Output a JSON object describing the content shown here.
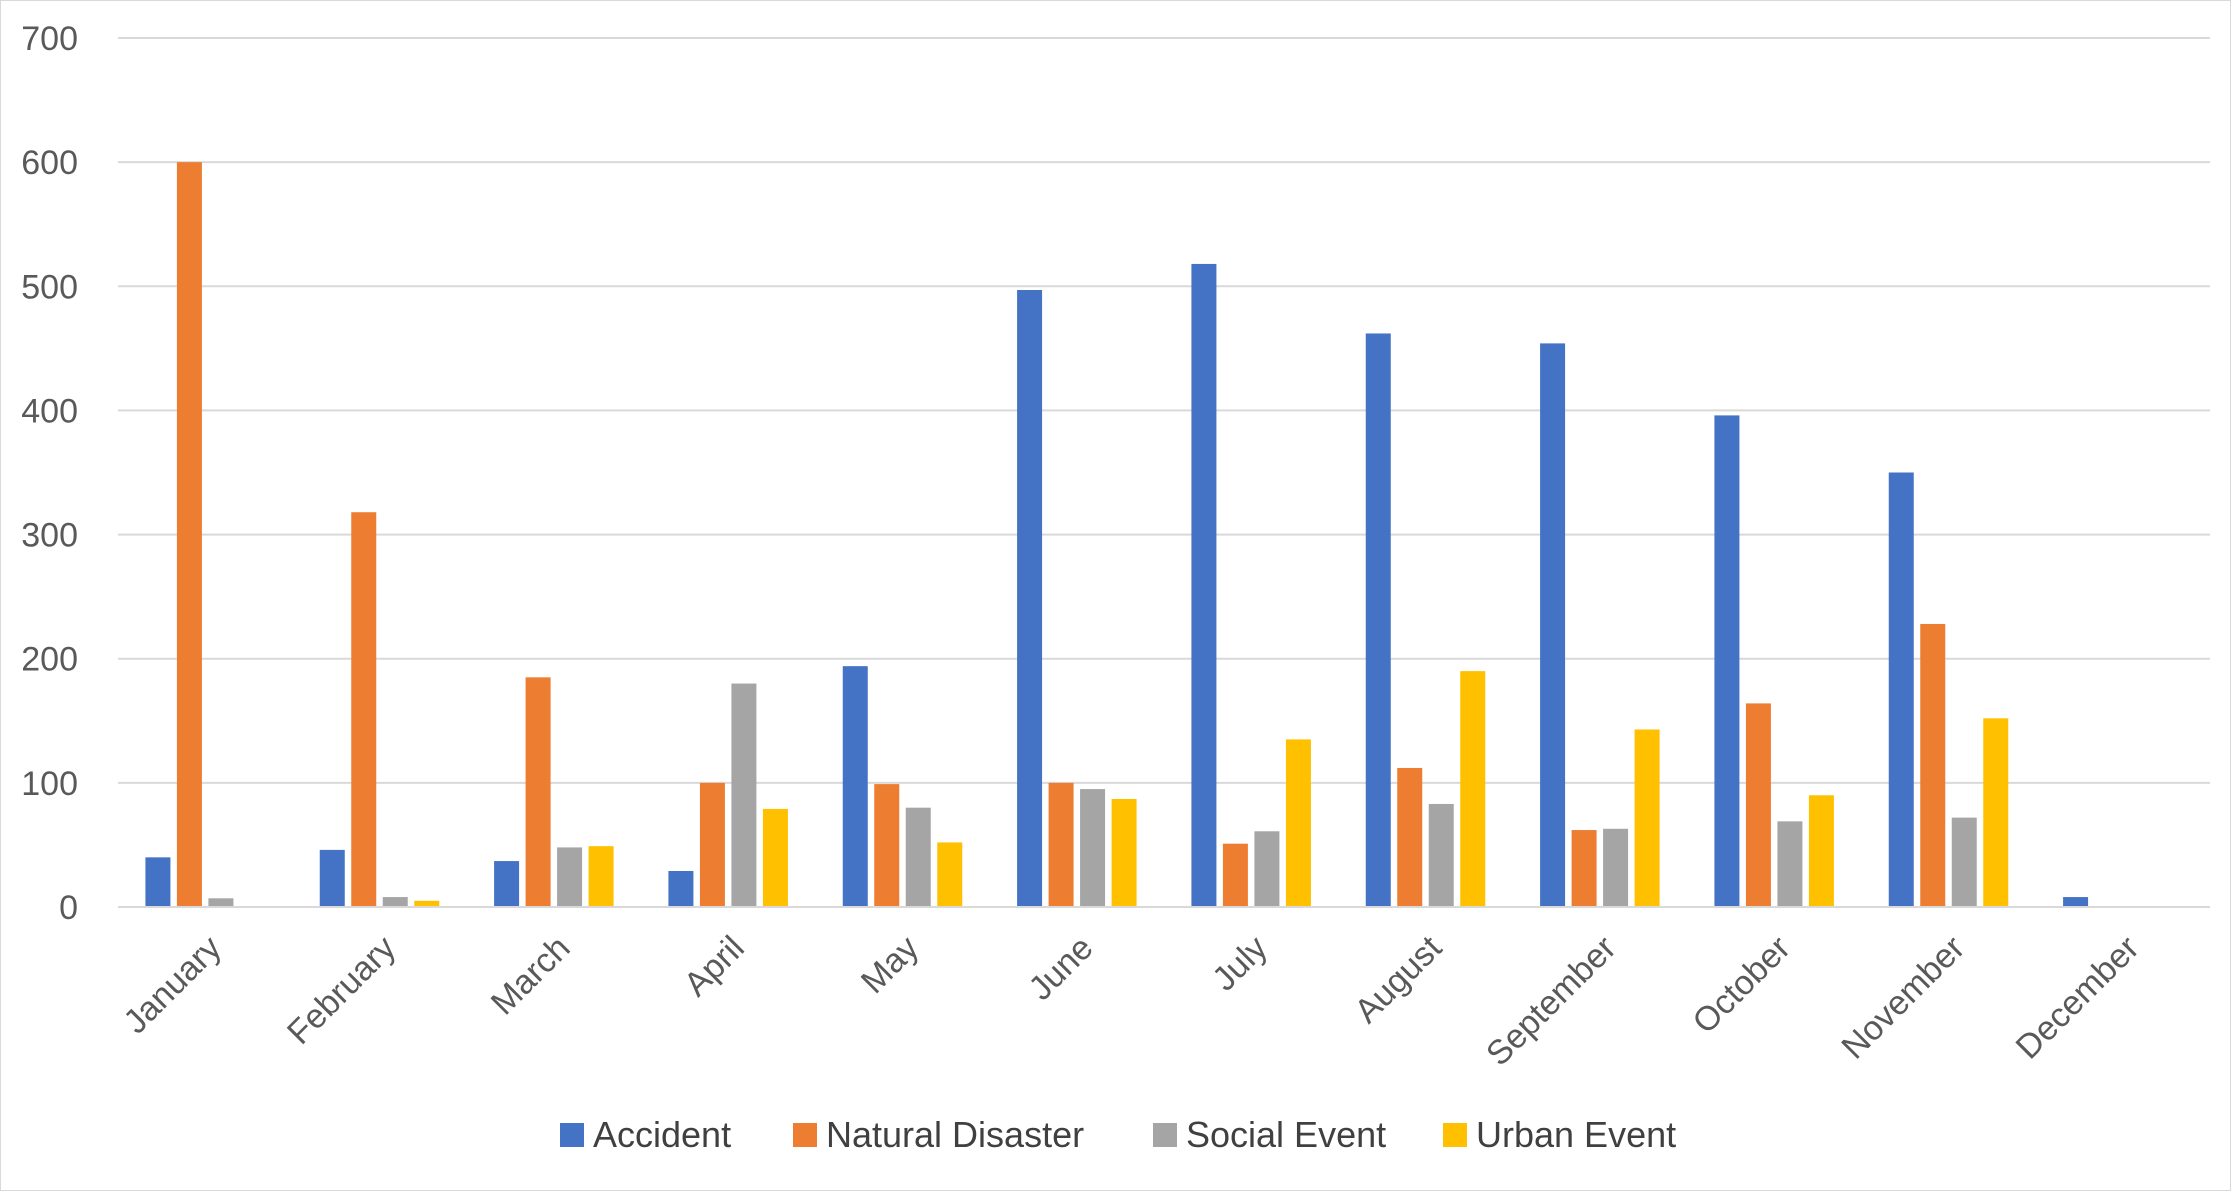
{
  "chart_data": {
    "type": "bar",
    "title": "",
    "xlabel": "",
    "ylabel": "",
    "ylim": [
      0,
      700
    ],
    "yticks": [
      0,
      100,
      200,
      300,
      400,
      500,
      600,
      700
    ],
    "grid": true,
    "legend_position": "bottom",
    "categories": [
      "January",
      "February",
      "March",
      "April",
      "May",
      "June",
      "July",
      "August",
      "September",
      "October",
      "November",
      "December"
    ],
    "series": [
      {
        "name": "Accident",
        "color": "#4472c4",
        "values": [
          40,
          46,
          37,
          29,
          194,
          497,
          518,
          462,
          454,
          396,
          350,
          8
        ]
      },
      {
        "name": "Natural Disaster",
        "color": "#ed7d31",
        "values": [
          600,
          318,
          185,
          100,
          99,
          100,
          51,
          112,
          62,
          164,
          228,
          0
        ]
      },
      {
        "name": "Social Event",
        "color": "#a5a5a5",
        "values": [
          7,
          8,
          48,
          180,
          80,
          95,
          61,
          83,
          63,
          69,
          72,
          0
        ]
      },
      {
        "name": "Urban Event",
        "color": "#ffc000",
        "values": [
          0,
          5,
          49,
          79,
          52,
          87,
          135,
          190,
          143,
          90,
          152,
          0
        ]
      }
    ]
  }
}
